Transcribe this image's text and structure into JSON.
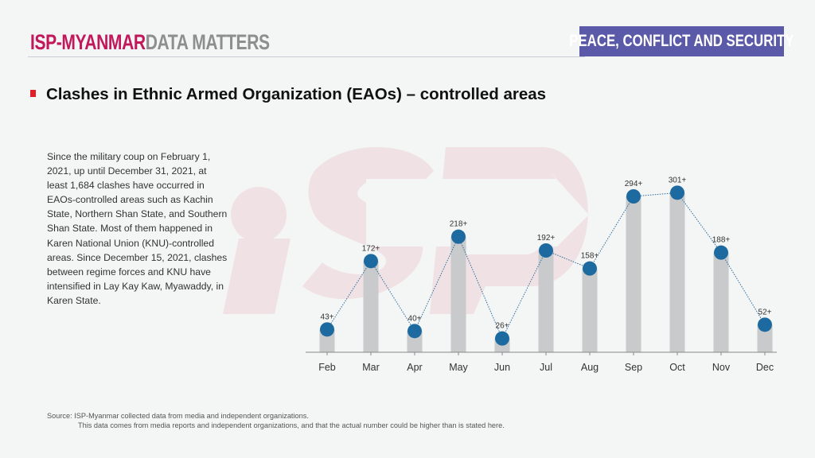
{
  "header": {
    "brand_primary": "ISP-MYANMAR",
    "brand_secondary": "DATA MATTERS",
    "category": "PEACE, CONFLICT AND SECURITY"
  },
  "title": "Clashes in Ethnic Armed Organization (EAOs) – controlled areas",
  "description": "Since the military coup on February 1, 2021, up until December 31, 2021, at least 1,684 clashes have occurred in EAOs-controlled areas such as Kachin State, Northern Shan State, and Southern Shan State. Most of them happened in Karen National Union (KNU)-controlled areas. Since December 15, 2021, clashes between regime forces and KNU have intensified in Lay Kay Kaw, Myawaddy, in Karen State.",
  "source": {
    "line1": "Source: ISP-Myanmar collected data from media and independent organizations.",
    "line2": "This data comes from media reports and independent organizations, and that the actual number could be higher than is stated here."
  },
  "colors": {
    "brand_magenta": "#c2185b",
    "brand_gray": "#8e8e8e",
    "badge": "#5b5aa8",
    "bullet": "#e11d2a",
    "bar": "#c9cacb",
    "dot": "#1d6aa0",
    "watermark": "#f0e2e4"
  },
  "chart_data": {
    "type": "bar",
    "title": "Clashes in Ethnic Armed Organization (EAOs) – controlled areas",
    "xlabel": "",
    "ylabel": "",
    "categories": [
      "Feb",
      "Mar",
      "Apr",
      "May",
      "Jun",
      "Jul",
      "Aug",
      "Sep",
      "Oct",
      "Nov",
      "Dec"
    ],
    "values": [
      43,
      172,
      40,
      218,
      26,
      192,
      158,
      294,
      301,
      188,
      52
    ],
    "data_labels": [
      "43+",
      "172+",
      "40+",
      "218+",
      "26+",
      "192+",
      "158+",
      "294+",
      "301+",
      "188+",
      "52+"
    ],
    "overlay": "dotted line with circular markers at each bar top",
    "ylim": [
      0,
      301
    ],
    "grid": false,
    "legend": "none"
  }
}
